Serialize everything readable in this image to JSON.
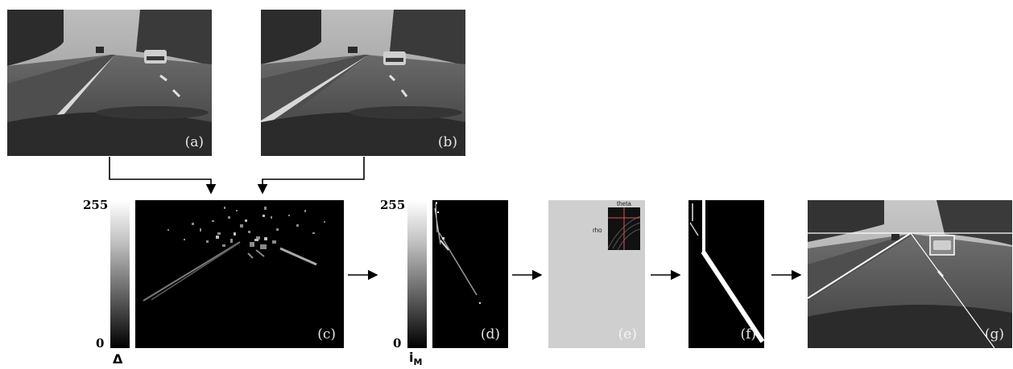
{
  "panels": {
    "a": {
      "label": "(a)"
    },
    "b": {
      "label": "(b)"
    },
    "c": {
      "label": "(c)"
    },
    "d": {
      "label": "(d)"
    },
    "e": {
      "label": "(e)",
      "hough_axis_theta": "theta",
      "hough_axis_rho": "rho"
    },
    "f": {
      "label": "(f)"
    },
    "g": {
      "label": "(g)"
    }
  },
  "colorbar_c": {
    "max": "255",
    "min": "0",
    "symbol": "Δ"
  },
  "colorbar_d": {
    "max": "255",
    "min": "0",
    "symbol": "i",
    "symbol_subscript": "M"
  },
  "colors": {
    "line": "#000000",
    "panel_e_bg": "#cfcfcf",
    "hough_cross": "#e05050"
  }
}
